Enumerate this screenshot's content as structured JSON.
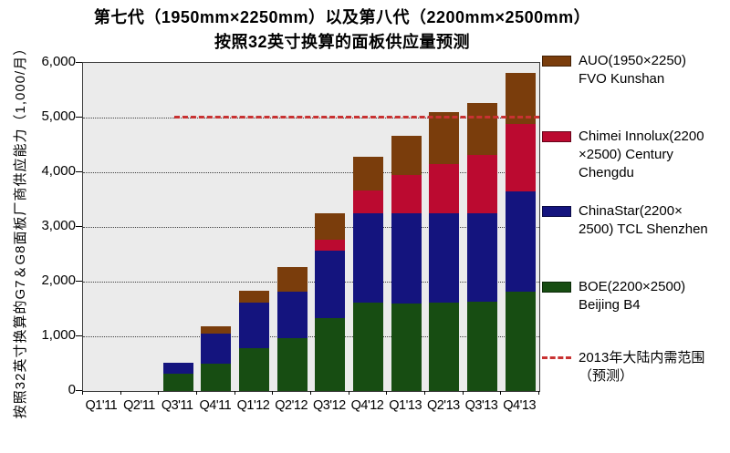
{
  "title": {
    "line1": "第七代（1950mm×2250mm）以及第八代（2200mm×2500mm）",
    "line2": "按照32英寸换算的面板供应量预测"
  },
  "y_axis": {
    "label": "按照32英寸换算的G7＆G8面板厂商供应能力（1,000/月）",
    "ticks": [
      "6,000",
      "5,000",
      "4,000",
      "3,000",
      "2,000",
      "1,000",
      "0"
    ],
    "max": 6000
  },
  "chart_data": {
    "type": "bar",
    "stacked": true,
    "title": "第七代（1950mm×2250mm）以及第八代（2200mm×2500mm）按照32英寸换算的面板供应量预测",
    "xlabel": "",
    "ylabel": "按照32英寸换算的G7＆G8面板厂商供应能力（1,000/月）",
    "ylim": [
      0,
      6000
    ],
    "grid": "dotted horizontal lines every 1000",
    "legend_position": "right",
    "categories": [
      "Q1'11",
      "Q2'11",
      "Q3'11",
      "Q4'11",
      "Q1'12",
      "Q2'12",
      "Q3'12",
      "Q4'12",
      "Q1'13",
      "Q2'13",
      "Q3'13",
      "Q4'13"
    ],
    "series": [
      {
        "name": "BOE(2200×2500) Beijing B4",
        "color": "#174D12",
        "values": [
          0,
          0,
          320,
          500,
          790,
          965,
          1340,
          1615,
          1605,
          1615,
          1630,
          1820
        ]
      },
      {
        "name": "ChinaStar(2200×2500) TCL Shenzhen",
        "color": "#14147E",
        "values": [
          0,
          0,
          200,
          555,
          820,
          845,
          1220,
          1640,
          1650,
          1640,
          1625,
          1830
        ]
      },
      {
        "name": "Chimei Innolux(2200×2500) Century Chengdu",
        "color": "#BB0A30",
        "values": [
          0,
          0,
          0,
          0,
          0,
          0,
          210,
          415,
          695,
          890,
          1055,
          1240
        ]
      },
      {
        "name": "AUO(1950×2250) FVO Kunshan",
        "color": "#7A3D0C",
        "values": [
          0,
          0,
          0,
          135,
          225,
          460,
          485,
          615,
          725,
          960,
          960,
          935
        ]
      }
    ],
    "totals": [
      0,
      0,
      520,
      1190,
      1835,
      2270,
      3255,
      4285,
      4675,
      5105,
      5270,
      5825
    ],
    "reference_line": {
      "value": 5000,
      "label": "2013年大陆内需范围（预测）",
      "color": "#C83232",
      "style": "dashed",
      "x_start_category": "Q3'11"
    }
  },
  "legend": {
    "items": [
      {
        "id": "auo",
        "swatch": "rect",
        "color": "#7A3D0C",
        "label": "AUO(1950×2250)\nFVO Kunshan"
      },
      {
        "id": "chimei",
        "swatch": "rect",
        "color": "#BB0A30",
        "label": "Chimei Innolux(2200\n×2500) Century\nChengdu"
      },
      {
        "id": "chinastar",
        "swatch": "rect",
        "color": "#14147E",
        "label": "ChinaStar(2200×\n2500) TCL Shenzhen"
      },
      {
        "id": "boe",
        "swatch": "rect",
        "color": "#174D12",
        "label": "BOE(2200×2500)\nBeijing B4"
      },
      {
        "id": "demand-line",
        "swatch": "dashed-line",
        "color": "#C83232",
        "label": "2013年大陆内需范围\n（预测）"
      }
    ]
  },
  "colors": {
    "plot_background": "#EBEBEB",
    "gridline": "#404040",
    "boe_green": "#174D12",
    "chinastar_navy": "#14147E",
    "chimei_red": "#BB0A30",
    "auo_brown": "#7A3D0C",
    "demand_line_red": "#C83232"
  }
}
